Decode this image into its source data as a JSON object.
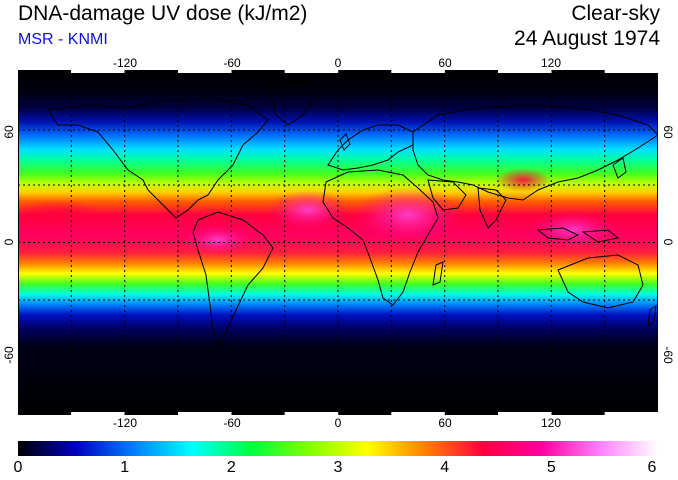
{
  "header": {
    "title": "DNA-damage UV dose (kJ/m2)",
    "source": "MSR - KNMI",
    "condition": "Clear-sky",
    "date": "24 August 1974"
  },
  "map": {
    "projection": "equirectangular",
    "lon_range": [
      -180,
      180
    ],
    "lat_range": [
      -90,
      90
    ],
    "gridlines": "dotted",
    "lon_ticks": [
      "-120",
      "-60",
      "0",
      "60",
      "120"
    ],
    "lat_ticks_left": [
      "60",
      "0",
      "-60"
    ],
    "lat_ticks_right": [
      "60",
      "0",
      "-60"
    ]
  },
  "colorbar": {
    "min": 0,
    "max": 6,
    "labels": [
      "0",
      "1",
      "2",
      "3",
      "4",
      "5",
      "6"
    ],
    "stops": [
      "#000000",
      "#0000c0",
      "#0080ff",
      "#00ffff",
      "#00ff40",
      "#80ff00",
      "#ffff00",
      "#ff8000",
      "#ff0040",
      "#ff00a0",
      "#ff80ff",
      "#ffffff"
    ]
  }
}
